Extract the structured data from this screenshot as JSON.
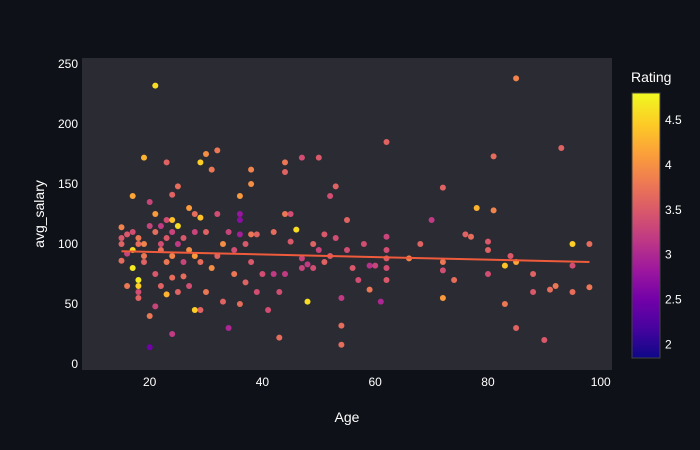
{
  "chart_data": {
    "type": "scatter",
    "title": "",
    "xlabel": "Age",
    "ylabel": "avg_salary",
    "xlim": [
      8,
      102
    ],
    "ylim": [
      -5,
      255
    ],
    "x_ticks": [
      20,
      40,
      60,
      80,
      100
    ],
    "y_ticks": [
      0,
      50,
      100,
      150,
      200,
      250
    ],
    "grid": false,
    "colorbar": {
      "title": "Rating",
      "range": [
        1.85,
        4.8
      ],
      "ticks": [
        2,
        2.5,
        3,
        3.5,
        4,
        4.5
      ]
    },
    "trendline": {
      "x": [
        15,
        98
      ],
      "y": [
        94,
        85
      ]
    },
    "points": [
      [
        15,
        105,
        3.5
      ],
      [
        15,
        100,
        3.6
      ],
      [
        15,
        86,
        3.7
      ],
      [
        15,
        114,
        3.9
      ],
      [
        16,
        108,
        3.5
      ],
      [
        16,
        92,
        3.3
      ],
      [
        16,
        65,
        3.8
      ],
      [
        17,
        110,
        3.4
      ],
      [
        17,
        95,
        4.6
      ],
      [
        17,
        80,
        4.7
      ],
      [
        17,
        140,
        4.2
      ],
      [
        18,
        105,
        3.8
      ],
      [
        18,
        60,
        3.4
      ],
      [
        18,
        55,
        3.6
      ],
      [
        18,
        70,
        4.7
      ],
      [
        18,
        65,
        4.5
      ],
      [
        18,
        100,
        3.7
      ],
      [
        19,
        172,
        4.3
      ],
      [
        19,
        100,
        3.9
      ],
      [
        19,
        90,
        3.8
      ],
      [
        19,
        85,
        3.6
      ],
      [
        20,
        115,
        3.3
      ],
      [
        20,
        40,
        3.8
      ],
      [
        20,
        135,
        3.3
      ],
      [
        20,
        14,
        2.5
      ],
      [
        21,
        232,
        4.6
      ],
      [
        21,
        125,
        4.1
      ],
      [
        21,
        48,
        3.3
      ],
      [
        21,
        110,
        3.7
      ],
      [
        21,
        75,
        3.5
      ],
      [
        22,
        115,
        3.2
      ],
      [
        22,
        100,
        3.4
      ],
      [
        22,
        95,
        3.7
      ],
      [
        22,
        65,
        3.6
      ],
      [
        23,
        168,
        3.6
      ],
      [
        23,
        120,
        3.4
      ],
      [
        23,
        105,
        3.5
      ],
      [
        23,
        58,
        4.3
      ],
      [
        23,
        85,
        3.8
      ],
      [
        24,
        141,
        3.6
      ],
      [
        24,
        120,
        4.4
      ],
      [
        24,
        110,
        3.3
      ],
      [
        24,
        90,
        3.9
      ],
      [
        24,
        72,
        3.7
      ],
      [
        24,
        25,
        3.2
      ],
      [
        25,
        148,
        3.7
      ],
      [
        25,
        115,
        4.6
      ],
      [
        25,
        100,
        3.2
      ],
      [
        25,
        60,
        3.6
      ],
      [
        26,
        105,
        3.5
      ],
      [
        26,
        85,
        3.3
      ],
      [
        26,
        73,
        3.7
      ],
      [
        27,
        130,
        4.1
      ],
      [
        27,
        95,
        4.0
      ],
      [
        27,
        65,
        3.4
      ],
      [
        28,
        125,
        3.7
      ],
      [
        28,
        90,
        4.1
      ],
      [
        28,
        45,
        4.5
      ],
      [
        28,
        110,
        3.3
      ],
      [
        29,
        168,
        4.5
      ],
      [
        29,
        122,
        4.4
      ],
      [
        29,
        85,
        3.7
      ],
      [
        29,
        45,
        3.6
      ],
      [
        30,
        175,
        4.0
      ],
      [
        30,
        110,
        3.6
      ],
      [
        30,
        60,
        3.8
      ],
      [
        31,
        162,
        3.8
      ],
      [
        31,
        80,
        4.0
      ],
      [
        32,
        178,
        3.8
      ],
      [
        32,
        125,
        3.4
      ],
      [
        32,
        90,
        3.6
      ],
      [
        33,
        100,
        4.0
      ],
      [
        33,
        52,
        3.6
      ],
      [
        34,
        110,
        3.3
      ],
      [
        34,
        30,
        3.0
      ],
      [
        35,
        95,
        3.4
      ],
      [
        35,
        75,
        3.8
      ],
      [
        36,
        140,
        4.1
      ],
      [
        36,
        125,
        2.8
      ],
      [
        36,
        120,
        2.7
      ],
      [
        36,
        108,
        2.9
      ],
      [
        36,
        50,
        3.7
      ],
      [
        37,
        100,
        3.5
      ],
      [
        37,
        68,
        3.6
      ],
      [
        38,
        162,
        3.9
      ],
      [
        38,
        150,
        4.0
      ],
      [
        38,
        108,
        3.8
      ],
      [
        38,
        85,
        3.5
      ],
      [
        39,
        108,
        3.6
      ],
      [
        39,
        60,
        3.4
      ],
      [
        40,
        75,
        3.4
      ],
      [
        41,
        45,
        3.4
      ],
      [
        42,
        110,
        3.7
      ],
      [
        42,
        75,
        3.2
      ],
      [
        43,
        60,
        3.4
      ],
      [
        43,
        22,
        3.7
      ],
      [
        44,
        168,
        3.8
      ],
      [
        44,
        160,
        3.6
      ],
      [
        44,
        125,
        3.8
      ],
      [
        44,
        75,
        3.2
      ],
      [
        45,
        125,
        3.4
      ],
      [
        45,
        102,
        3.5
      ],
      [
        46,
        112,
        4.6
      ],
      [
        47,
        172,
        3.4
      ],
      [
        47,
        88,
        3.3
      ],
      [
        47,
        80,
        3.3
      ],
      [
        48,
        83,
        3.2
      ],
      [
        48,
        52,
        4.6
      ],
      [
        49,
        100,
        3.6
      ],
      [
        49,
        80,
        3.4
      ],
      [
        50,
        172,
        3.5
      ],
      [
        50,
        95,
        3.3
      ],
      [
        51,
        108,
        3.5
      ],
      [
        51,
        85,
        3.6
      ],
      [
        52,
        140,
        3.4
      ],
      [
        52,
        90,
        3.5
      ],
      [
        53,
        148,
        3.6
      ],
      [
        53,
        105,
        3.4
      ],
      [
        54,
        55,
        3.2
      ],
      [
        54,
        32,
        3.7
      ],
      [
        54,
        16,
        3.7
      ],
      [
        55,
        120,
        3.6
      ],
      [
        55,
        95,
        3.4
      ],
      [
        56,
        80,
        3.5
      ],
      [
        57,
        70,
        3.4
      ],
      [
        58,
        100,
        3.4
      ],
      [
        59,
        82,
        3.1
      ],
      [
        59,
        62,
        3.8
      ],
      [
        60,
        82,
        3.3
      ],
      [
        61,
        52,
        3.0
      ],
      [
        62,
        185,
        3.6
      ],
      [
        62,
        106,
        3.3
      ],
      [
        62,
        95,
        3.4
      ],
      [
        62,
        88,
        3.5
      ],
      [
        62,
        80,
        3.4
      ],
      [
        62,
        70,
        3.5
      ],
      [
        66,
        88,
        3.9
      ],
      [
        68,
        100,
        3.6
      ],
      [
        70,
        120,
        3.2
      ],
      [
        72,
        147,
        3.6
      ],
      [
        72,
        85,
        3.8
      ],
      [
        72,
        78,
        3.4
      ],
      [
        72,
        55,
        4.1
      ],
      [
        74,
        70,
        3.7
      ],
      [
        76,
        108,
        3.6
      ],
      [
        77,
        106,
        3.7
      ],
      [
        78,
        130,
        4.3
      ],
      [
        80,
        102,
        3.5
      ],
      [
        80,
        95,
        3.6
      ],
      [
        80,
        75,
        3.4
      ],
      [
        81,
        173,
        3.7
      ],
      [
        81,
        128,
        3.9
      ],
      [
        83,
        82,
        4.4
      ],
      [
        83,
        50,
        3.8
      ],
      [
        84,
        90,
        3.5
      ],
      [
        85,
        238,
        3.9
      ],
      [
        85,
        85,
        4.2
      ],
      [
        85,
        30,
        3.6
      ],
      [
        88,
        75,
        3.6
      ],
      [
        88,
        60,
        3.5
      ],
      [
        90,
        20,
        3.5
      ],
      [
        91,
        62,
        3.7
      ],
      [
        92,
        65,
        3.8
      ],
      [
        93,
        180,
        3.6
      ],
      [
        95,
        100,
        4.5
      ],
      [
        95,
        82,
        3.4
      ],
      [
        95,
        60,
        3.7
      ],
      [
        98,
        100,
        3.7
      ],
      [
        98,
        64,
        3.8
      ]
    ],
    "colors": {
      "plot_bg": "#2b2b33",
      "page_bg": "#0e1117",
      "trendline": "#ef5b3c",
      "text": "#ffffff"
    }
  }
}
